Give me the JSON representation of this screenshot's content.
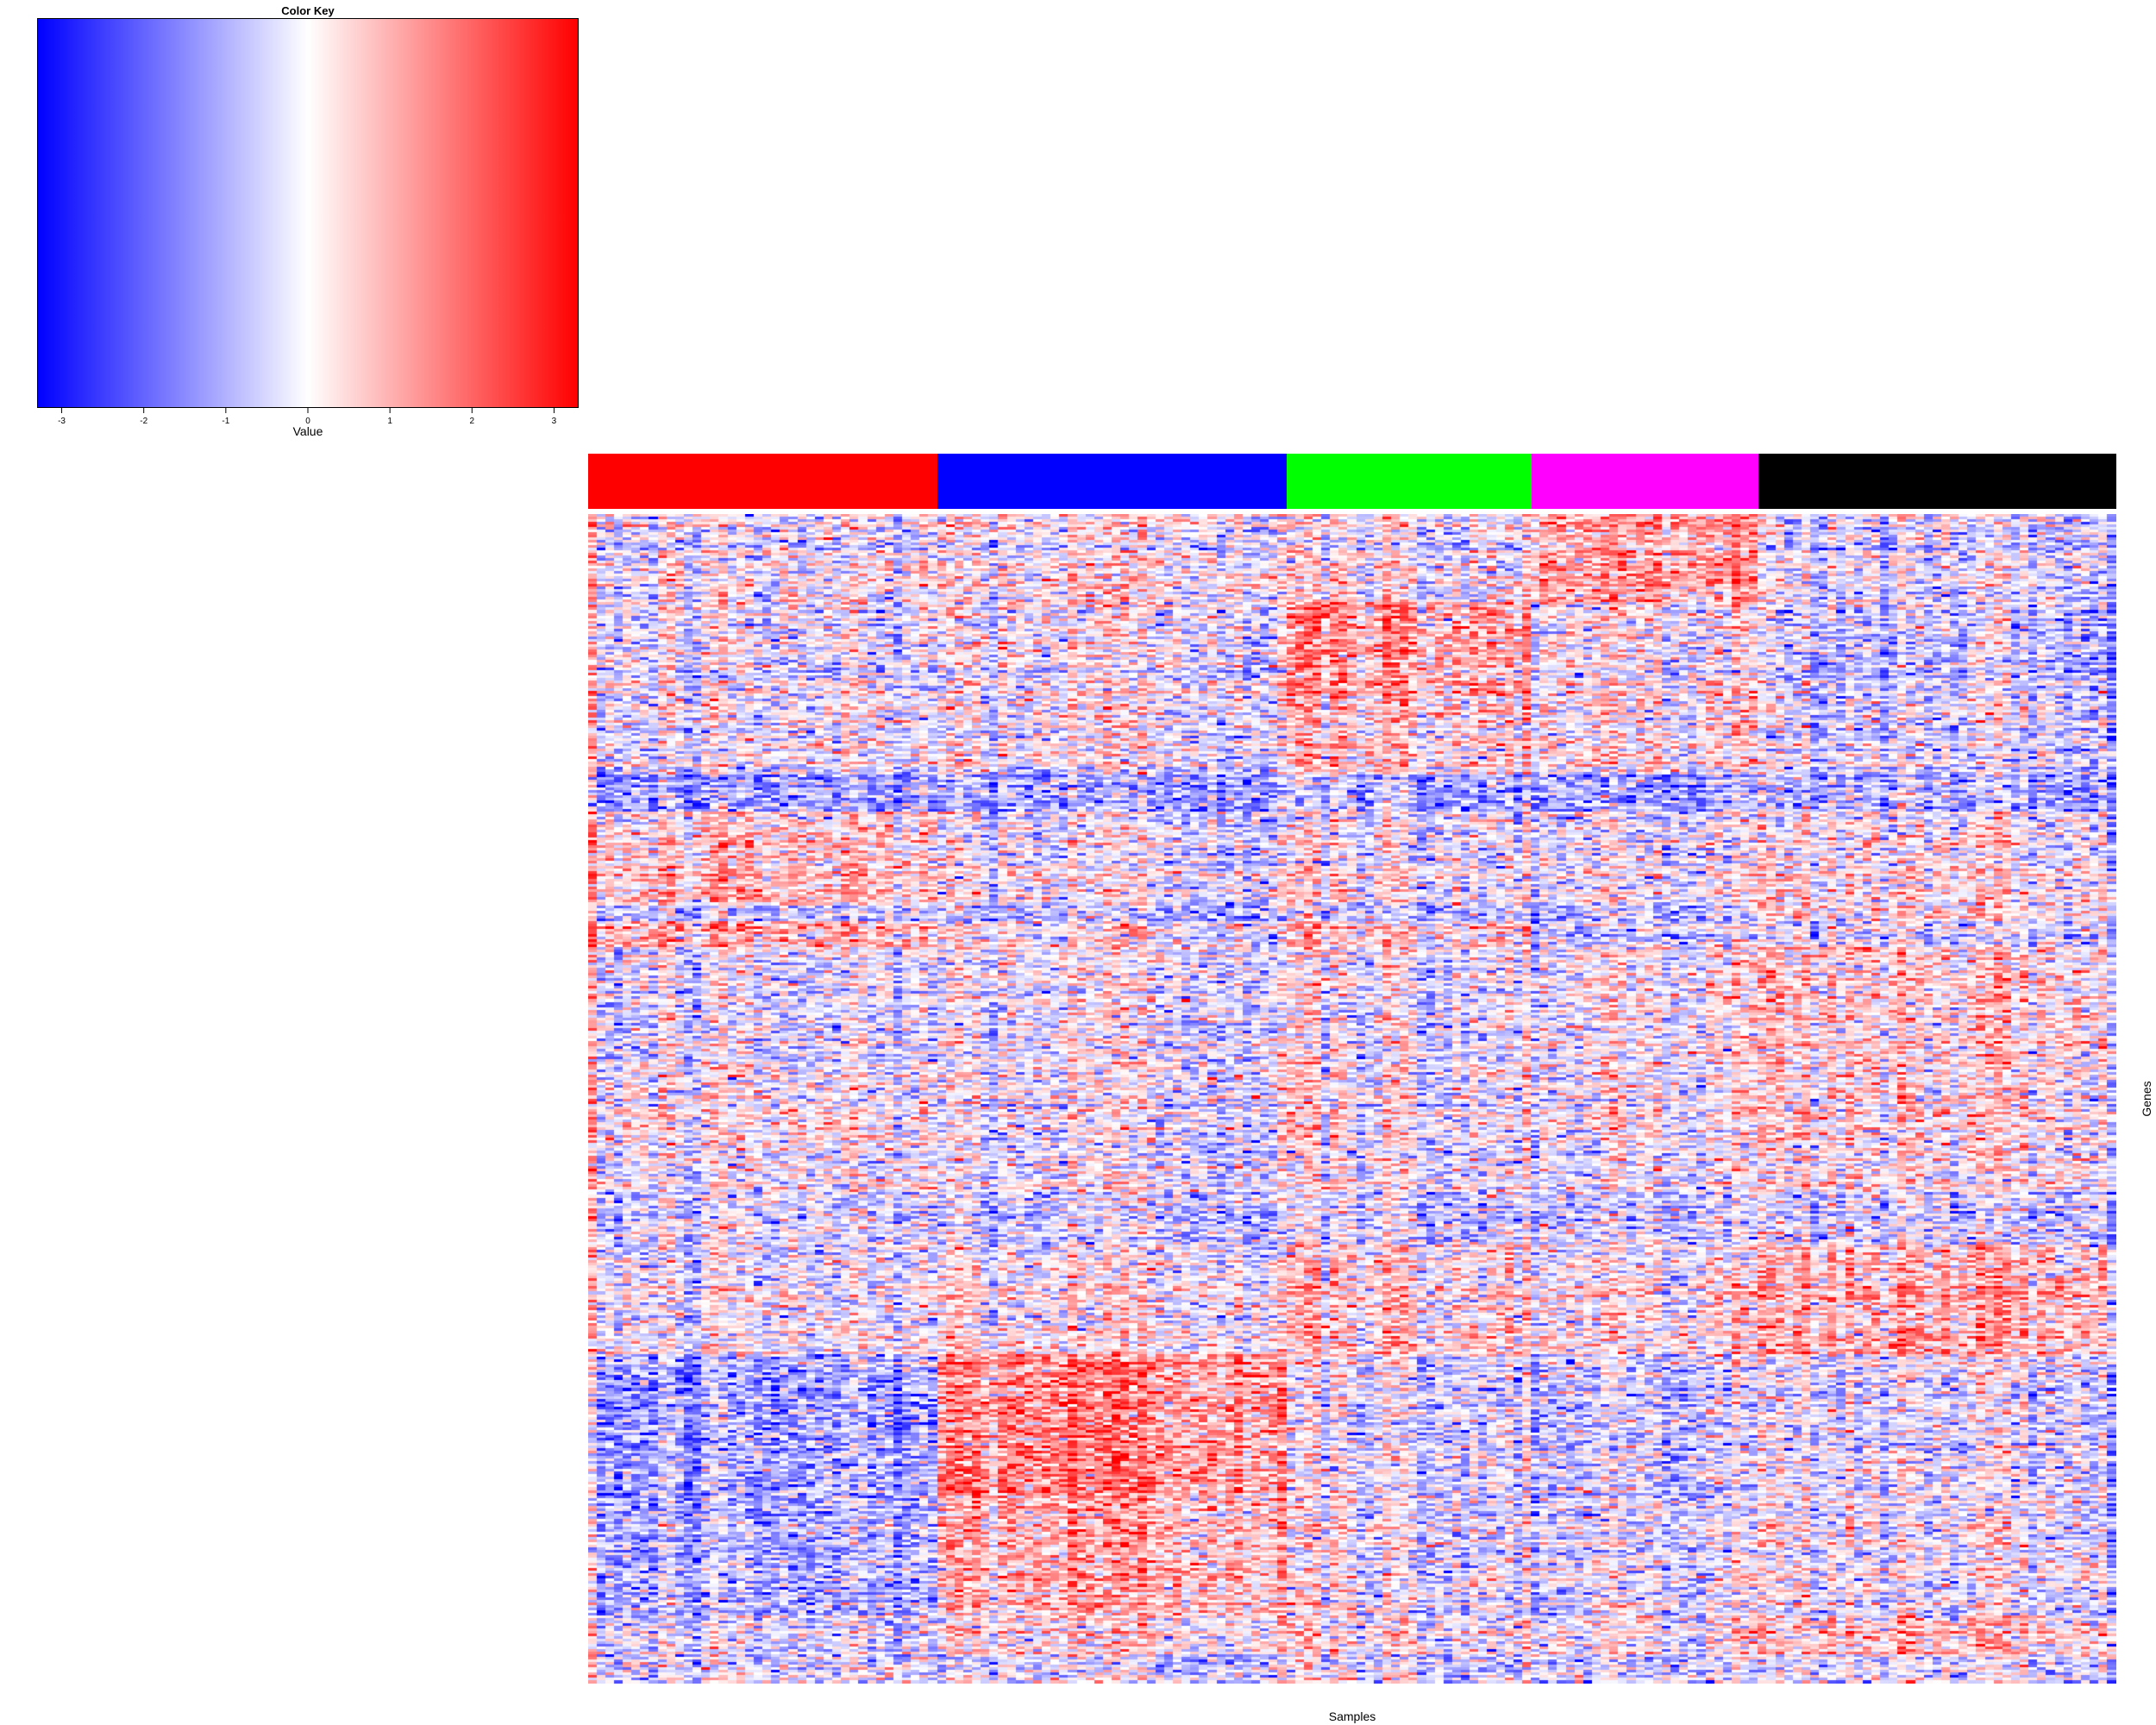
{
  "chart_data": {
    "type": "heatmap",
    "xlabel": "Samples",
    "ylabel": "Genes",
    "color_key": {
      "title": "Color Key",
      "label": "Value",
      "range": [
        -3.3,
        3.3
      ],
      "ticks": [
        -3,
        -2,
        -1,
        0,
        1,
        2,
        3
      ],
      "colors": {
        "low": "#0000ff",
        "mid": "#ffffff",
        "high": "#ff0000"
      }
    },
    "sample_groups": [
      {
        "color": "#ff0000",
        "n_samples": 40
      },
      {
        "color": "#0000ff",
        "n_samples": 40
      },
      {
        "color": "#00ff00",
        "n_samples": 28
      },
      {
        "color": "#ff00ff",
        "n_samples": 26
      },
      {
        "color": "#000000",
        "n_samples": 41
      }
    ],
    "gene_blocks": [
      {
        "rows": 34,
        "means": [
          -0.2,
          0.1,
          -0.1,
          1.2,
          -0.4
        ]
      },
      {
        "rows": 36,
        "means": [
          -0.2,
          0.0,
          1.2,
          0.2,
          -0.6
        ]
      },
      {
        "rows": 30,
        "means": [
          -0.2,
          0.0,
          0.5,
          0.4,
          -0.4
        ]
      },
      {
        "rows": 14,
        "means": [
          -1.2,
          -1.0,
          -0.9,
          -1.0,
          -1.0
        ]
      },
      {
        "rows": 36,
        "means": [
          0.6,
          -0.1,
          0.0,
          0.0,
          0.2
        ]
      },
      {
        "rows": 6,
        "means": [
          -0.8,
          -0.8,
          -0.8,
          -0.8,
          0.4
        ]
      },
      {
        "rows": 10,
        "means": [
          0.9,
          0.2,
          0.5,
          -0.3,
          -0.4
        ]
      },
      {
        "rows": 46,
        "means": [
          -0.3,
          -0.1,
          -0.1,
          0.2,
          0.5
        ]
      },
      {
        "rows": 14,
        "means": [
          0.0,
          0.0,
          0.0,
          0.0,
          0.3
        ]
      },
      {
        "rows": 34,
        "means": [
          -0.1,
          -0.2,
          -0.1,
          0.0,
          0.2
        ]
      },
      {
        "rows": 20,
        "means": [
          -0.3,
          -0.4,
          -0.4,
          -0.4,
          -0.4
        ]
      },
      {
        "rows": 42,
        "means": [
          -0.2,
          0.2,
          0.5,
          0.3,
          0.9
        ]
      },
      {
        "rows": 54,
        "means": [
          -1.1,
          1.5,
          -0.2,
          -0.4,
          -0.2
        ]
      },
      {
        "rows": 46,
        "means": [
          -1.0,
          1.0,
          -0.1,
          -0.2,
          -0.1
        ]
      },
      {
        "rows": 16,
        "means": [
          -0.4,
          0.3,
          0.1,
          0.2,
          0.6
        ]
      },
      {
        "rows": 10,
        "means": [
          -0.4,
          -0.4,
          -0.4,
          -0.4,
          -0.4
        ]
      }
    ]
  }
}
